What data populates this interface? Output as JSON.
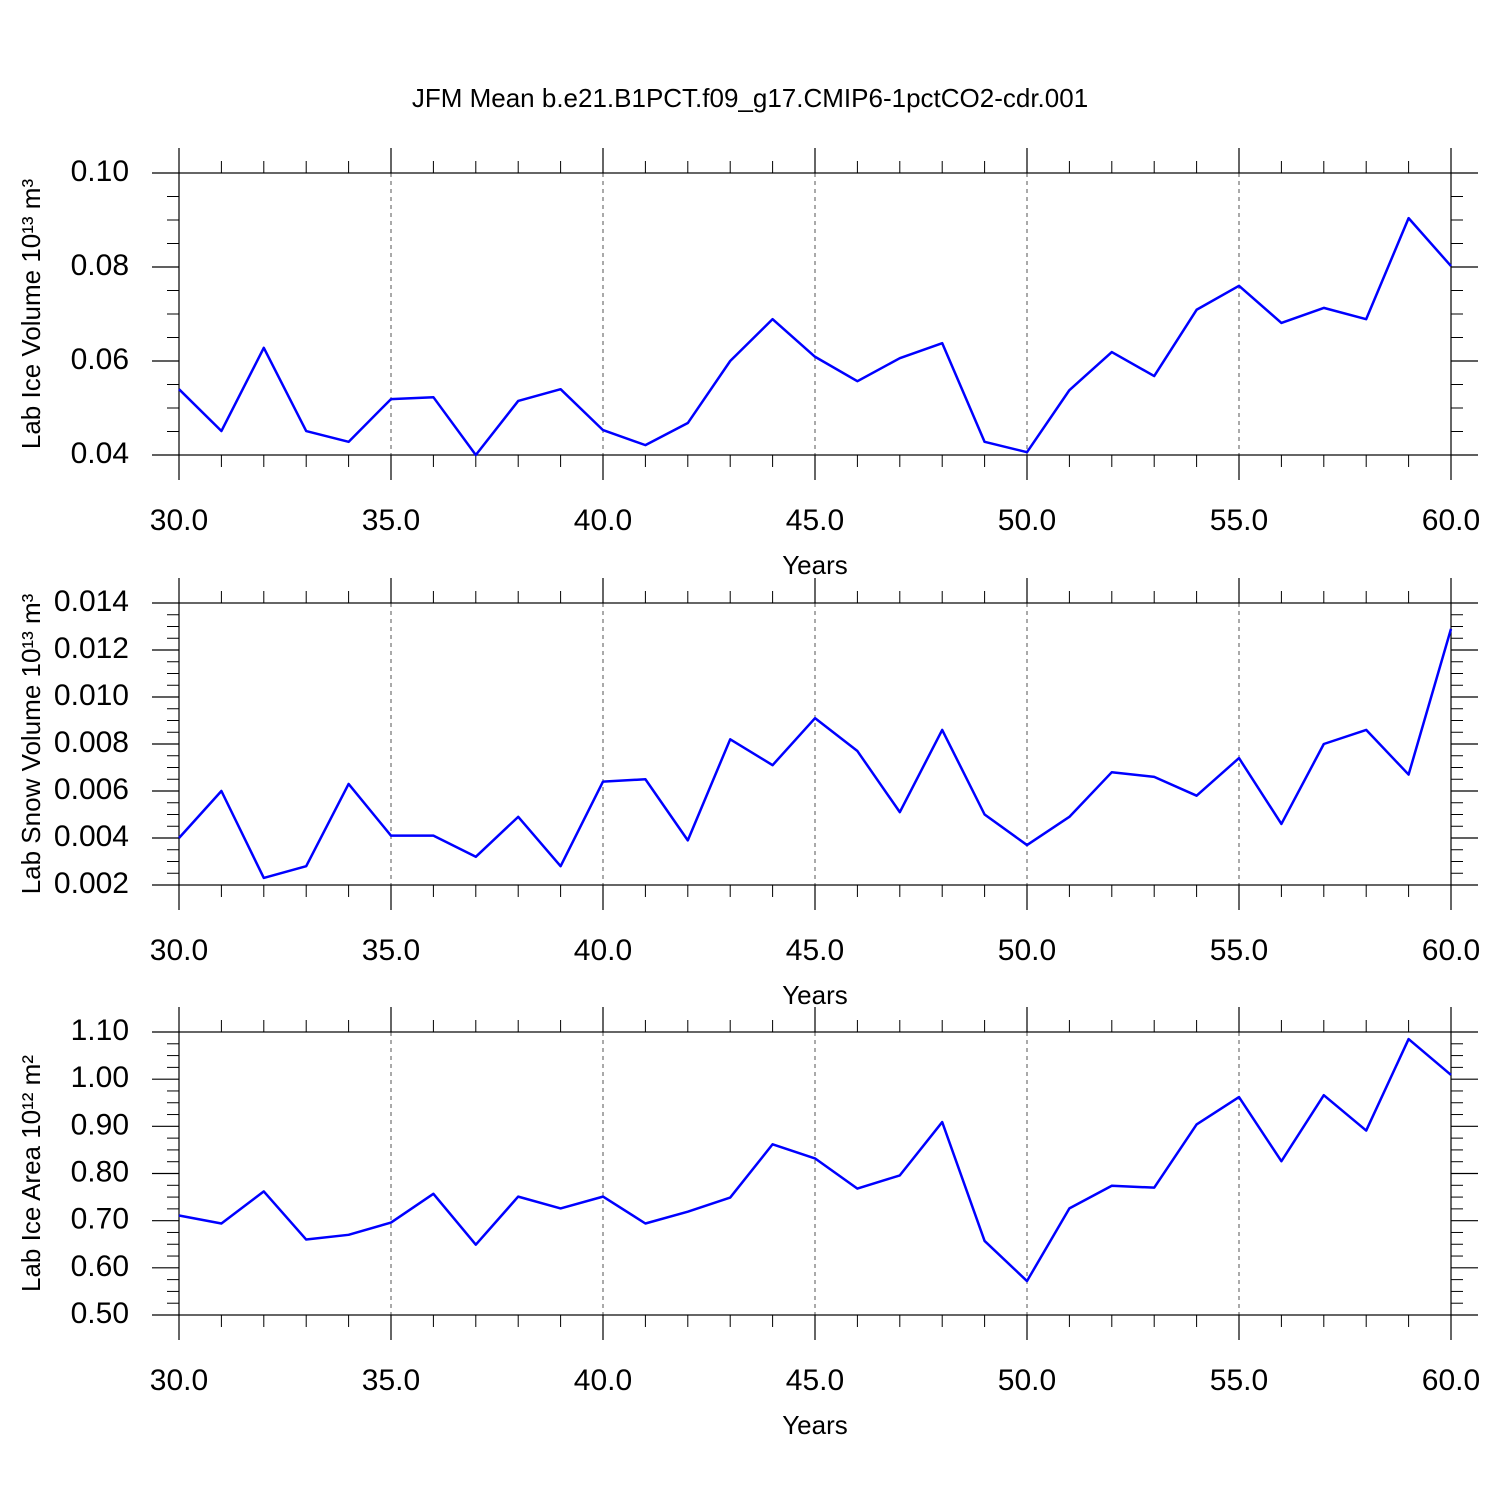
{
  "title": "JFM Mean b.e21.B1PCT.f09_g17.CMIP6-1pctCO2-cdr.001",
  "chart_data": [
    {
      "type": "line",
      "ylabel": "Lab Ice Volume 10¹³ m³",
      "xlabel": "Years",
      "color": "#0000ff",
      "grid": true,
      "x": [
        30,
        31,
        32,
        33,
        34,
        35,
        36,
        37,
        38,
        39,
        40,
        41,
        42,
        43,
        44,
        45,
        46,
        47,
        48,
        49,
        50,
        51,
        52,
        53,
        54,
        55,
        56,
        57,
        58,
        59,
        60
      ],
      "values": [
        0.054,
        0.0451,
        0.0628,
        0.0451,
        0.0428,
        0.0519,
        0.0523,
        0.04,
        0.0515,
        0.054,
        0.0453,
        0.0421,
        0.0468,
        0.06,
        0.0689,
        0.0609,
        0.0557,
        0.0606,
        0.0638,
        0.0428,
        0.0406,
        0.0538,
        0.0619,
        0.0568,
        0.0709,
        0.076,
        0.0681,
        0.0713,
        0.0689,
        0.0904,
        0.0802
      ],
      "xlim": [
        30,
        60
      ],
      "xticks": [
        {
          "value": 30,
          "label": "30.0"
        },
        {
          "value": 35,
          "label": "35.0"
        },
        {
          "value": 40,
          "label": "40.0"
        },
        {
          "value": 45,
          "label": "45.0"
        },
        {
          "value": 50,
          "label": "50.0"
        },
        {
          "value": 55,
          "label": "55.0"
        },
        {
          "value": 60,
          "label": "60.0"
        }
      ],
      "ylim": [
        0.04,
        0.1
      ],
      "yticks": [
        0.04,
        0.06,
        0.08,
        {
          "value": 0.1,
          "label": "0.10"
        }
      ]
    },
    {
      "type": "line",
      "ylabel": "Lab Snow Volume 10¹³ m³",
      "xlabel": "Years",
      "color": "#0000ff",
      "grid": true,
      "x": [
        30,
        31,
        32,
        33,
        34,
        35,
        36,
        37,
        38,
        39,
        40,
        41,
        42,
        43,
        44,
        45,
        46,
        47,
        48,
        49,
        50,
        51,
        52,
        53,
        54,
        55,
        56,
        57,
        58,
        59,
        60
      ],
      "values": [
        0.004,
        0.006,
        0.0023,
        0.0028,
        0.0063,
        0.0041,
        0.0041,
        0.0032,
        0.0049,
        0.0028,
        0.0064,
        0.0065,
        0.0039,
        0.0082,
        0.0071,
        0.0091,
        0.0077,
        0.0051,
        0.0086,
        0.005,
        0.0037,
        0.0049,
        0.0068,
        0.0066,
        0.0058,
        0.0074,
        0.0046,
        0.008,
        0.0086,
        0.0067,
        0.0129
      ],
      "xlim": [
        30,
        60
      ],
      "xticks": [
        {
          "value": 30,
          "label": "30.0"
        },
        {
          "value": 35,
          "label": "35.0"
        },
        {
          "value": 40,
          "label": "40.0"
        },
        {
          "value": 45,
          "label": "45.0"
        },
        {
          "value": 50,
          "label": "50.0"
        },
        {
          "value": 55,
          "label": "55.0"
        },
        {
          "value": 60,
          "label": "60.0"
        }
      ],
      "ylim": [
        0.002,
        0.014
      ],
      "yticks": [
        0.002,
        0.004,
        0.006,
        0.008,
        {
          "value": 0.01,
          "label": "0.010"
        },
        0.012,
        0.014
      ]
    },
    {
      "type": "line",
      "ylabel": "Lab Ice Area 10¹² m²",
      "xlabel": "Years",
      "color": "#0000ff",
      "grid": true,
      "x": [
        30,
        31,
        32,
        33,
        34,
        35,
        36,
        37,
        38,
        39,
        40,
        41,
        42,
        43,
        44,
        45,
        46,
        47,
        48,
        49,
        50,
        51,
        52,
        53,
        54,
        55,
        56,
        57,
        58,
        59,
        60
      ],
      "values": [
        0.711,
        0.694,
        0.762,
        0.66,
        0.67,
        0.696,
        0.757,
        0.649,
        0.751,
        0.726,
        0.751,
        0.694,
        0.719,
        0.749,
        0.862,
        0.832,
        0.768,
        0.796,
        0.909,
        0.657,
        0.572,
        0.726,
        0.774,
        0.77,
        0.904,
        0.962,
        0.826,
        0.966,
        0.891,
        1.085,
        1.009
      ],
      "xlim": [
        30,
        60
      ],
      "xticks": [
        {
          "value": 30,
          "label": "30.0"
        },
        {
          "value": 35,
          "label": "35.0"
        },
        {
          "value": 40,
          "label": "40.0"
        },
        {
          "value": 45,
          "label": "45.0"
        },
        {
          "value": 50,
          "label": "50.0"
        },
        {
          "value": 55,
          "label": "55.0"
        },
        {
          "value": 60,
          "label": "60.0"
        }
      ],
      "ylim": [
        0.5,
        1.1
      ],
      "yticks": [
        {
          "value": 0.5,
          "label": "0.50"
        },
        {
          "value": 0.6,
          "label": "0.60"
        },
        {
          "value": 0.7,
          "label": "0.70"
        },
        {
          "value": 0.8,
          "label": "0.80"
        },
        {
          "value": 0.9,
          "label": "0.90"
        },
        {
          "value": 1.0,
          "label": "1.00"
        },
        {
          "value": 1.1,
          "label": "1.10"
        }
      ]
    }
  ]
}
